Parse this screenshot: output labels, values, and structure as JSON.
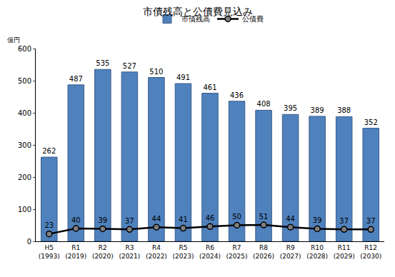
{
  "chart_data": {
    "type": "bar",
    "title": "市債残高と公債費見込み",
    "ylabel": "億円",
    "categories": [
      "H5\n(1993)",
      "R1\n(2019)",
      "R2\n(2020)",
      "R3\n(2021)",
      "R4\n(2022)",
      "R5\n(2023)",
      "R6\n(2024)",
      "R7\n(2025)",
      "R8\n(2026)",
      "R9\n(2027)",
      "R10\n(2028)",
      "R11\n(2029)",
      "R12\n(2030)"
    ],
    "series": [
      {
        "name": "市債残高",
        "type": "bar",
        "color": "#4f81bd",
        "values": [
          262,
          487,
          535,
          527,
          510,
          491,
          461,
          436,
          408,
          395,
          389,
          388,
          352
        ]
      },
      {
        "name": "公債費",
        "type": "line",
        "color": "#000000",
        "marker": "circle",
        "line_style": "solid",
        "values": [
          23,
          40,
          39,
          37,
          44,
          41,
          46,
          50,
          51,
          44,
          39,
          37,
          37
        ]
      }
    ],
    "ylim": [
      0,
      600
    ],
    "yticks": [
      0,
      100,
      200,
      300,
      400,
      500,
      600
    ],
    "grid": false,
    "legend": "top",
    "data_labels": true
  }
}
